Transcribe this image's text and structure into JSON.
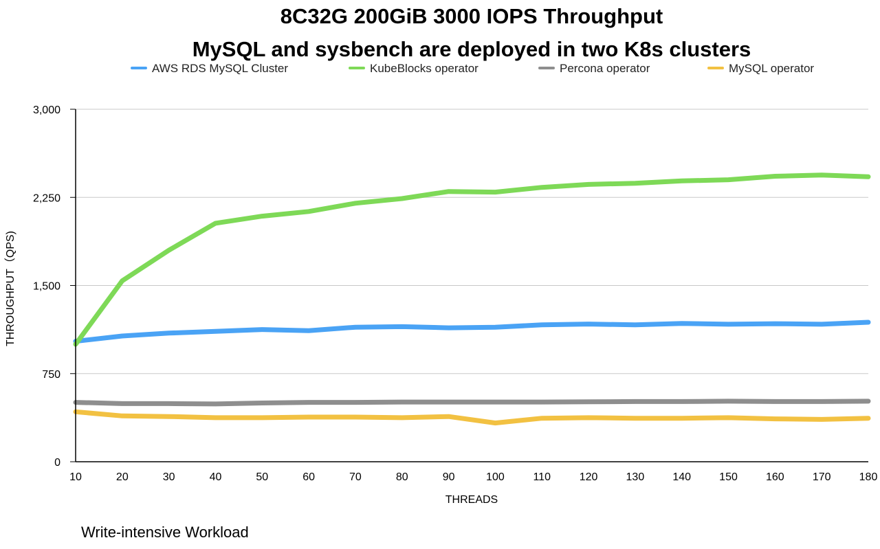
{
  "chart_data": {
    "type": "line",
    "title_line1": "8C32G 200GiB 3000 IOPS Throughput",
    "title_line2": "MySQL and sysbench are deployed in two K8s clusters",
    "xlabel": "THREADS",
    "ylabel": "THROUGHPUT（QPS)",
    "caption": "Write-intensive Workload",
    "legend_position": "top",
    "grid": true,
    "ylim": [
      0,
      3000
    ],
    "yticks": [
      0,
      750,
      1500,
      2250,
      3000
    ],
    "ytick_labels": [
      "0",
      "750",
      "1,500",
      "2,250",
      "3,000"
    ],
    "x": [
      10,
      20,
      30,
      40,
      50,
      60,
      70,
      80,
      90,
      100,
      110,
      120,
      130,
      140,
      150,
      160,
      170,
      180
    ],
    "series": [
      {
        "name": "AWS RDS MySQL Cluster",
        "color": "#4aa3f5",
        "values": [
          1025,
          1070,
          1095,
          1110,
          1125,
          1115,
          1145,
          1150,
          1140,
          1145,
          1165,
          1172,
          1165,
          1177,
          1170,
          1175,
          1170,
          1187
        ]
      },
      {
        "name": "KubeBlocks operator",
        "color": "#7ed957",
        "values": [
          1000,
          1540,
          1800,
          2030,
          2090,
          2130,
          2200,
          2240,
          2300,
          2295,
          2335,
          2360,
          2370,
          2390,
          2400,
          2430,
          2440,
          2425
        ]
      },
      {
        "name": "Percona operator",
        "color": "#8e8e8e",
        "values": [
          505,
          495,
          495,
          492,
          500,
          505,
          505,
          508,
          508,
          508,
          508,
          510,
          512,
          512,
          515,
          512,
          512,
          515
        ]
      },
      {
        "name": "MySQL operator",
        "color": "#f2c142",
        "values": [
          425,
          390,
          385,
          375,
          375,
          380,
          380,
          375,
          385,
          330,
          370,
          375,
          370,
          370,
          375,
          365,
          360,
          370
        ]
      }
    ]
  }
}
